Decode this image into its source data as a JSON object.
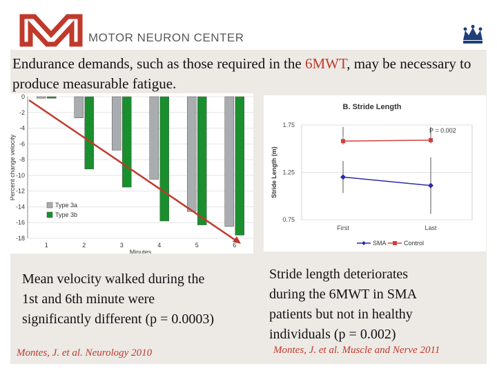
{
  "header": {
    "brand": "MOTOR NEURON CENTER"
  },
  "heading": {
    "part1": "Endurance demands, such as those required in the ",
    "highlight": "6MWT",
    "part2": ", may be necessary to produce measurable fatigue."
  },
  "colors": {
    "accent_red": "#c0392b",
    "logo_red": "#c0392b",
    "crown_blue": "#1f3f7a",
    "bar_gray": "#a9adb0",
    "bar_green": "#1a8f2e",
    "sma_blue": "#2a2aa8",
    "control_red": "#d04040"
  },
  "chart_data": [
    {
      "type": "bar",
      "ylabel": "Percent change velocity",
      "xlabel": "Minutes",
      "categories": [
        "1",
        "2",
        "3",
        "4",
        "5",
        "6"
      ],
      "ylim": [
        -18,
        0
      ],
      "yticks": [
        "0",
        "-2",
        "-4",
        "-6",
        "-8",
        "-10",
        "-12",
        "-14",
        "-16",
        "-18"
      ],
      "legend_position": "bottom-left",
      "series": [
        {
          "name": "Type 3a",
          "values": [
            -0.2,
            -2.7,
            -6.8,
            -10.5,
            -14.6,
            -16.5
          ]
        },
        {
          "name": "Type 3b",
          "values": [
            -0.2,
            -9.2,
            -11.5,
            -15.8,
            -16.3,
            -17.6
          ]
        }
      ]
    },
    {
      "type": "line",
      "title": "B. Stride Length",
      "ylabel": "Stride Length (m)",
      "categories": [
        "First",
        "Last"
      ],
      "ylim": [
        0.75,
        1.75
      ],
      "yticks": [
        "1.75",
        "1.25",
        "0.75"
      ],
      "annotation": "P = 0.002",
      "legend_position": "bottom",
      "series": [
        {
          "name": "SMA",
          "values": [
            1.2,
            1.11
          ]
        },
        {
          "name": "Control",
          "values": [
            1.58,
            1.59
          ]
        }
      ]
    }
  ],
  "captions": {
    "left_lines": [
      "Mean velocity walked during the",
      "1st and 6th minute were",
      "significantly different (p = 0.0003)"
    ],
    "right_lines": [
      "Stride length deteriorates",
      "during the 6MWT in SMA",
      "patients but not in healthy",
      "individuals (p = 0.002)"
    ]
  },
  "refs": {
    "left": "Montes, J. et al. Neurology 2010",
    "right": "Montes, J. et al. Muscle and Nerve 2011"
  },
  "icons": {
    "logo": "mnc-logo-mark",
    "crown": "crown-icon"
  }
}
